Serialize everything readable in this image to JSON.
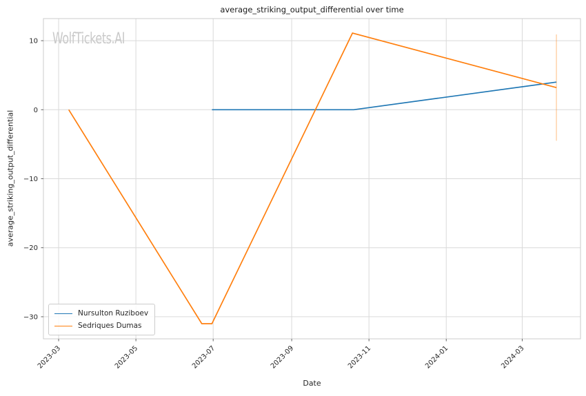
{
  "watermark": {
    "text": "WolfTickets.AI",
    "color": "#c9c9c9"
  },
  "chart_data": {
    "type": "line",
    "title": "average_striking_output_differential over time",
    "xlabel": "Date",
    "ylabel": "average_striking_output_differential",
    "grid": true,
    "legend_position": "lower-left",
    "xlim": [
      "2023-02-17",
      "2024-04-16"
    ],
    "ylim": [
      -33.2,
      13.2
    ],
    "x_ticks": [
      {
        "value": "2023-03-01",
        "label": "2023-03"
      },
      {
        "value": "2023-05-01",
        "label": "2023-05"
      },
      {
        "value": "2023-07-01",
        "label": "2023-07"
      },
      {
        "value": "2023-09-01",
        "label": "2023-09"
      },
      {
        "value": "2023-11-01",
        "label": "2023-11"
      },
      {
        "value": "2024-01-01",
        "label": "2024-01"
      },
      {
        "value": "2024-03-01",
        "label": "2024-03"
      }
    ],
    "y_ticks": [
      {
        "value": 10,
        "label": "10"
      },
      {
        "value": 0,
        "label": "0"
      },
      {
        "value": -10,
        "label": "−10"
      },
      {
        "value": -20,
        "label": "−20"
      },
      {
        "value": -30,
        "label": "−30"
      }
    ],
    "series": [
      {
        "name": "Nursulton Ruziboev",
        "color": "#1f77b4",
        "points": [
          {
            "date": "2023-06-30",
            "value": 0
          },
          {
            "date": "2023-10-20",
            "value": 0
          },
          {
            "date": "2024-03-28",
            "value": 4.0
          }
        ]
      },
      {
        "name": "Sedriques Dumas",
        "color": "#ff7f0e",
        "points": [
          {
            "date": "2023-03-09",
            "value": 0
          },
          {
            "date": "2023-06-22",
            "value": -31
          },
          {
            "date": "2023-06-30",
            "value": -31
          },
          {
            "date": "2023-10-19",
            "value": 11.1
          },
          {
            "date": "2024-03-28",
            "value": 3.2
          }
        ],
        "error_bar": {
          "date": "2024-03-28",
          "low": -4.5,
          "high": 10.9
        }
      }
    ],
    "style": {
      "grid_color": "#d9d9d9",
      "spine_color": "#cbcbcb",
      "tick_color": "#555555",
      "text_color": "#262626",
      "error_bar_opacity": 0.35
    }
  }
}
